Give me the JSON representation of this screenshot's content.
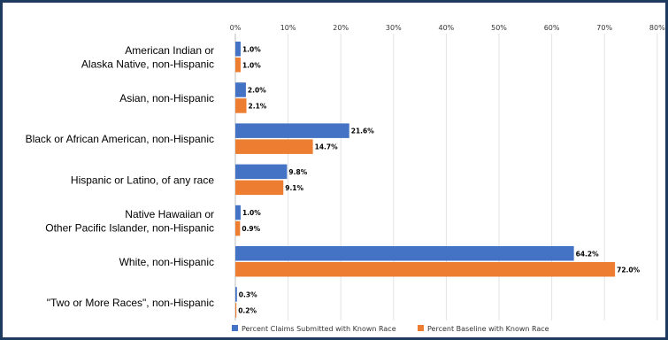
{
  "chart_data": {
    "type": "bar",
    "orientation": "horizontal",
    "title": "",
    "xlabel": "",
    "ylabel": "",
    "xlim": [
      0,
      80
    ],
    "x_ticks": [
      "0%",
      "10%",
      "20%",
      "30%",
      "40%",
      "50%",
      "60%",
      "70%",
      "80%"
    ],
    "grid": true,
    "legend_position": "bottom",
    "categories": [
      [
        "American Indian or",
        "Alaska Native, non-Hispanic"
      ],
      [
        "Asian, non-Hispanic"
      ],
      [
        "Black or African American, non-Hispanic"
      ],
      [
        "Hispanic or Latino, of any race"
      ],
      [
        "Native Hawaiian or",
        "Other Pacific Islander, non-Hispanic"
      ],
      [
        "White, non-Hispanic"
      ],
      [
        "\"Two or More Races\", non-Hispanic"
      ]
    ],
    "series": [
      {
        "name": "Percent Claims Submitted with Known Race",
        "color": "#4472c4",
        "values": [
          1.0,
          2.0,
          21.6,
          9.8,
          1.0,
          64.2,
          0.3
        ],
        "labels": [
          "1.0%",
          "2.0%",
          "21.6%",
          "9.8%",
          "1.0%",
          "64.2%",
          "0.3%"
        ]
      },
      {
        "name": "Percent Baseline with Known Race",
        "color": "#ed7d31",
        "values": [
          1.0,
          2.1,
          14.7,
          9.1,
          0.9,
          72.0,
          0.2
        ],
        "labels": [
          "1.0%",
          "2.1%",
          "14.7%",
          "9.1%",
          "0.9%",
          "72.0%",
          "0.2%"
        ]
      }
    ]
  }
}
